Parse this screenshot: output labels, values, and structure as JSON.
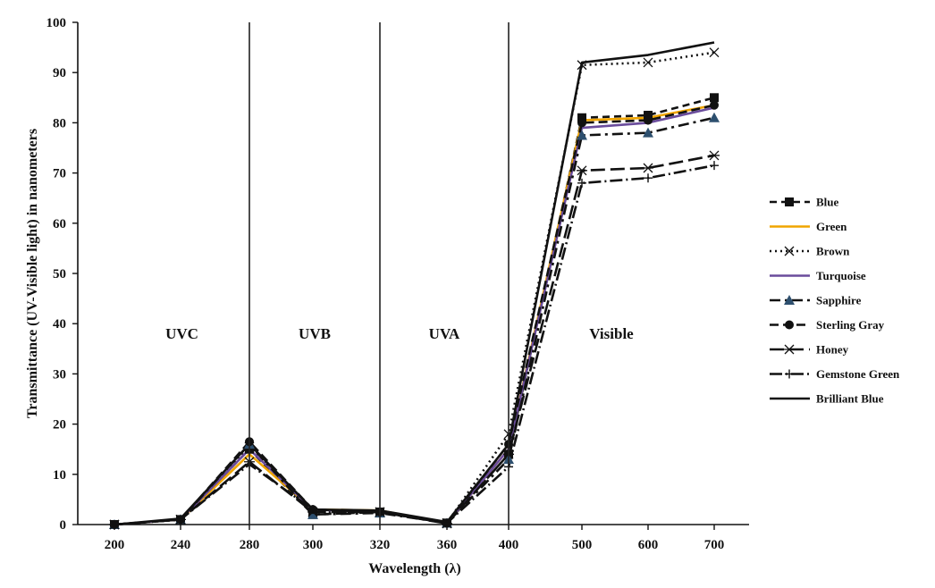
{
  "chart_data": {
    "type": "line",
    "title": "",
    "xlabel": "Wavelength (λ)",
    "ylabel": "Transmittance (UV-Visible light)  in nanometers",
    "categories": [
      "200",
      "240",
      "280",
      "300",
      "320",
      "360",
      "400",
      "500",
      "600",
      "700"
    ],
    "ylim": [
      0,
      100
    ],
    "yticks": [
      0,
      10,
      20,
      30,
      40,
      50,
      60,
      70,
      80,
      90,
      100
    ],
    "grid": false,
    "legend_position": "right",
    "regions": [
      {
        "label": "UVC",
        "from": "200",
        "to": "280"
      },
      {
        "label": "UVB",
        "from": "280",
        "to": "320"
      },
      {
        "label": "UVA",
        "from": "320",
        "to": "400"
      },
      {
        "label": "Visible",
        "from": "400",
        "to": "700"
      }
    ],
    "series": [
      {
        "name": "Blue",
        "values": [
          0,
          1,
          15,
          2,
          2.5,
          0.3,
          14,
          81,
          81.5,
          85
        ],
        "color": "#111111",
        "dash": "8,5",
        "marker": "square"
      },
      {
        "name": "Green",
        "values": [
          0,
          1,
          14,
          3,
          2.8,
          0.3,
          15,
          80.5,
          81,
          83.5
        ],
        "color": "#f0a500",
        "dash": "",
        "marker": "none"
      },
      {
        "name": "Brown",
        "values": [
          0,
          1,
          15.5,
          2.5,
          2.5,
          0.3,
          18,
          91.5,
          92,
          94
        ],
        "color": "#111111",
        "dash": "2,4",
        "marker": "x"
      },
      {
        "name": "Turquoise",
        "values": [
          0,
          1,
          15,
          3,
          2.5,
          0.3,
          15,
          79,
          80,
          83
        ],
        "color": "#6a4c9c",
        "dash": "",
        "marker": "none"
      },
      {
        "name": "Sapphire",
        "values": [
          0,
          1,
          16,
          2,
          2.3,
          0.3,
          13,
          77.5,
          78,
          81
        ],
        "color": "#111111",
        "dash": "12,5,3,5",
        "marker": "triangle"
      },
      {
        "name": "Sterling Gray",
        "values": [
          0,
          1,
          16.5,
          3,
          2.5,
          0.3,
          16,
          80,
          80.5,
          83.5
        ],
        "color": "#111111",
        "dash": "10,5",
        "marker": "circle"
      },
      {
        "name": "Honey",
        "values": [
          0,
          1,
          12.5,
          2.5,
          2.5,
          0.2,
          14,
          70.5,
          71,
          73.5
        ],
        "color": "#111111",
        "dash": "16,6",
        "marker": "star"
      },
      {
        "name": "Gemstone Green",
        "values": [
          0,
          1,
          12,
          3,
          2.5,
          0.3,
          11.5,
          68,
          69,
          71.5
        ],
        "color": "#111111",
        "dash": "14,4,2,4",
        "marker": "plus"
      },
      {
        "name": "Brilliant Blue",
        "values": [
          0,
          1.2,
          16,
          3,
          2.8,
          0.5,
          16,
          92,
          93.5,
          96
        ],
        "color": "#111111",
        "dash": "",
        "marker": "none"
      }
    ]
  }
}
